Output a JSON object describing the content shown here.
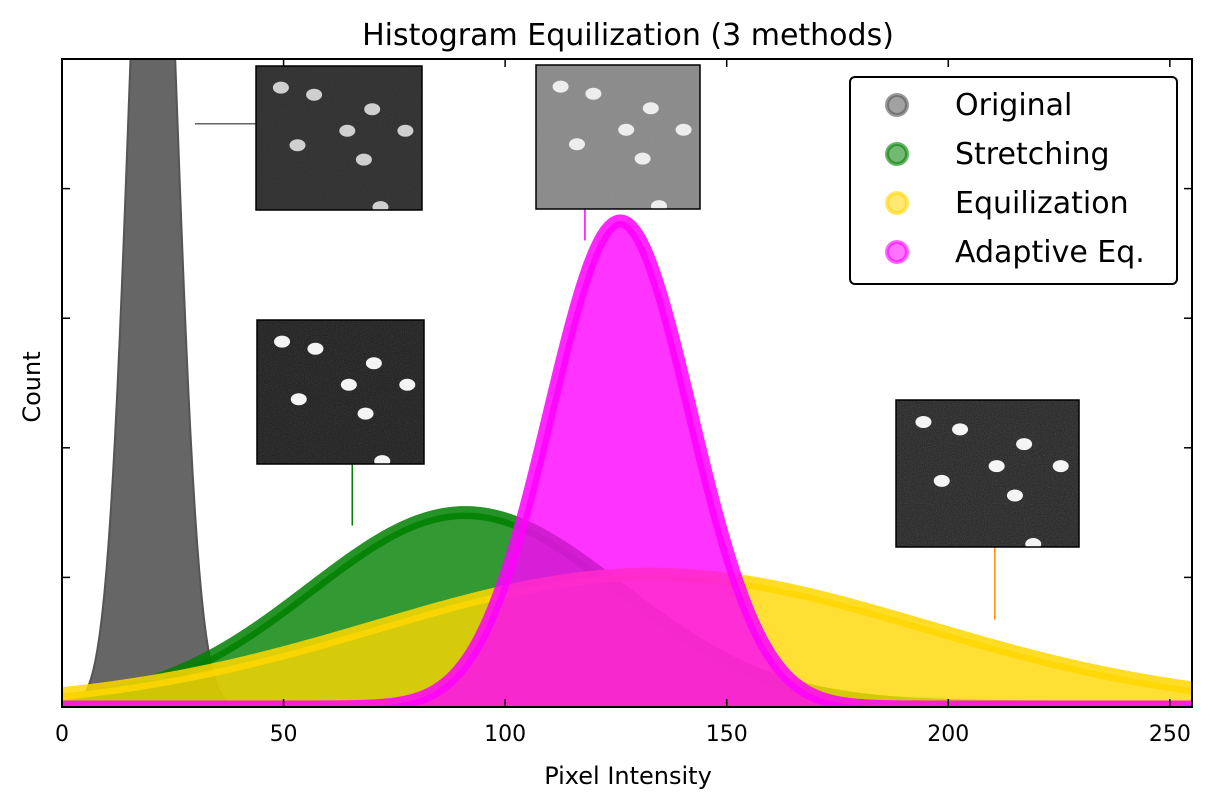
{
  "chart_data": {
    "type": "area",
    "title": "Histogram Equilization (3 methods)",
    "xlabel": "Pixel Intensity",
    "ylabel": "Count",
    "xlim": [
      0,
      255
    ],
    "ylim": [
      0,
      1
    ],
    "x_ticks": [
      0,
      50,
      100,
      150,
      200,
      250
    ],
    "y_ticks": [
      0.2,
      0.4,
      0.6,
      0.8,
      1.0
    ],
    "y_tick_labels_shown": false,
    "grid": false,
    "legend_position": "top-right",
    "series": [
      {
        "name": "Original",
        "color": "#555555",
        "distribution": "gaussian",
        "mean": 20.5,
        "std": 5.2,
        "peak": 1.6
      },
      {
        "name": "Stretching",
        "color": "#008000",
        "distribution": "gaussian",
        "mean": 91,
        "std": 35,
        "peak": 0.3
      },
      {
        "name": "Equilization",
        "color": "#ffd700",
        "distribution": "gaussian",
        "mean": 133,
        "std": 62,
        "peak": 0.205
      },
      {
        "name": "Adaptive Eq.",
        "color": "#ff00ff",
        "distribution": "gaussian",
        "mean": 126,
        "std": 16,
        "peak": 0.75
      }
    ],
    "inset_images": [
      {
        "series": "Original",
        "anchor_x": 30,
        "anchor_y": 0.9
      },
      {
        "series": "Stretching",
        "anchor_x": 65.5,
        "anchor_y": 0.28
      },
      {
        "series": "Adaptive Eq.",
        "anchor_x": 118,
        "anchor_y": 0.72
      },
      {
        "series": "Equilization",
        "anchor_x": 210.5,
        "anchor_y": 0.135
      }
    ]
  }
}
